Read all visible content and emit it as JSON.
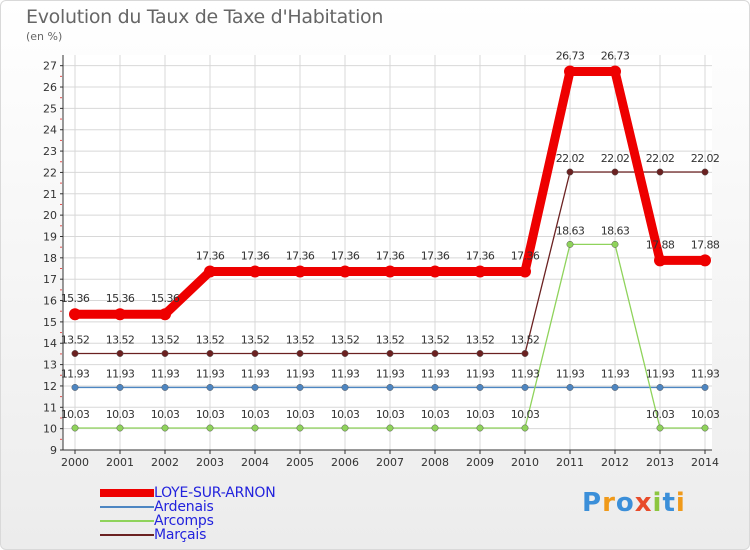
{
  "header": {
    "title": "Evolution du Taux de Taxe d'Habitation",
    "unit": "(en %)"
  },
  "brand": {
    "text": "Proxiti"
  },
  "chart_data": {
    "type": "line",
    "title": "Evolution du Taux de Taxe d'Habitation",
    "ylabel": "(en %)",
    "x": [
      "2000",
      "2001",
      "2002",
      "2003",
      "2004",
      "2005",
      "2006",
      "2007",
      "2008",
      "2009",
      "2010",
      "2011",
      "2012",
      "2013",
      "2014"
    ],
    "y_ticks": [
      "9",
      "10",
      "11",
      "12",
      "13",
      "14",
      "15",
      "16",
      "17",
      "18",
      "19",
      "20",
      "21",
      "22",
      "23",
      "24",
      "25",
      "26",
      "27"
    ],
    "ylim": [
      9,
      27.5
    ],
    "legend_position": "bottom-left",
    "series": [
      {
        "name": "LOYE-SUR-ARNON",
        "color": "#ee0000",
        "values": [
          15.36,
          15.36,
          15.36,
          17.36,
          17.36,
          17.36,
          17.36,
          17.36,
          17.36,
          17.36,
          17.36,
          26.73,
          26.73,
          17.88,
          17.88
        ],
        "labels": [
          "15.36",
          "15.36",
          "15.36",
          "17.36",
          "17.36",
          "17.36",
          "17.36",
          "17.36",
          "17.36",
          "17.36",
          "17.36",
          "26.73",
          "26.73",
          "17.88",
          "17.88"
        ]
      },
      {
        "name": "Ardenais",
        "color": "#4d86c2",
        "values": [
          11.93,
          11.93,
          11.93,
          11.93,
          11.93,
          11.93,
          11.93,
          11.93,
          11.93,
          11.93,
          11.93,
          11.93,
          11.93,
          11.93,
          11.93
        ],
        "labels": [
          "11.93",
          "11.93",
          "11.93",
          "11.93",
          "11.93",
          "11.93",
          "11.93",
          "11.93",
          "11.93",
          "11.93",
          "11.93",
          "11.93",
          "11.93",
          "11.93",
          "11.93"
        ]
      },
      {
        "name": "Arcomps",
        "color": "#8fd35b",
        "values": [
          10.03,
          10.03,
          10.03,
          10.03,
          10.03,
          10.03,
          10.03,
          10.03,
          10.03,
          10.03,
          10.03,
          18.63,
          18.63,
          10.03,
          10.03
        ],
        "labels": [
          "10.03",
          "10.03",
          "10.03",
          "10.03",
          "10.03",
          "10.03",
          "10.03",
          "10.03",
          "10.03",
          "10.03",
          "10.03",
          "18.63",
          "18.63",
          "10.03",
          "10.03"
        ]
      },
      {
        "name": "Marçais",
        "color": "#6b2121",
        "values": [
          13.52,
          13.52,
          13.52,
          13.52,
          13.52,
          13.52,
          13.52,
          13.52,
          13.52,
          13.52,
          13.52,
          22.02,
          22.02,
          22.02,
          22.02
        ],
        "labels": [
          "13.52",
          "13.52",
          "13.52",
          "13.52",
          "13.52",
          "13.52",
          "13.52",
          "13.52",
          "13.52",
          "13.52",
          "13.52",
          "22.02",
          "22.02",
          "22.02",
          "22.02"
        ]
      }
    ]
  }
}
